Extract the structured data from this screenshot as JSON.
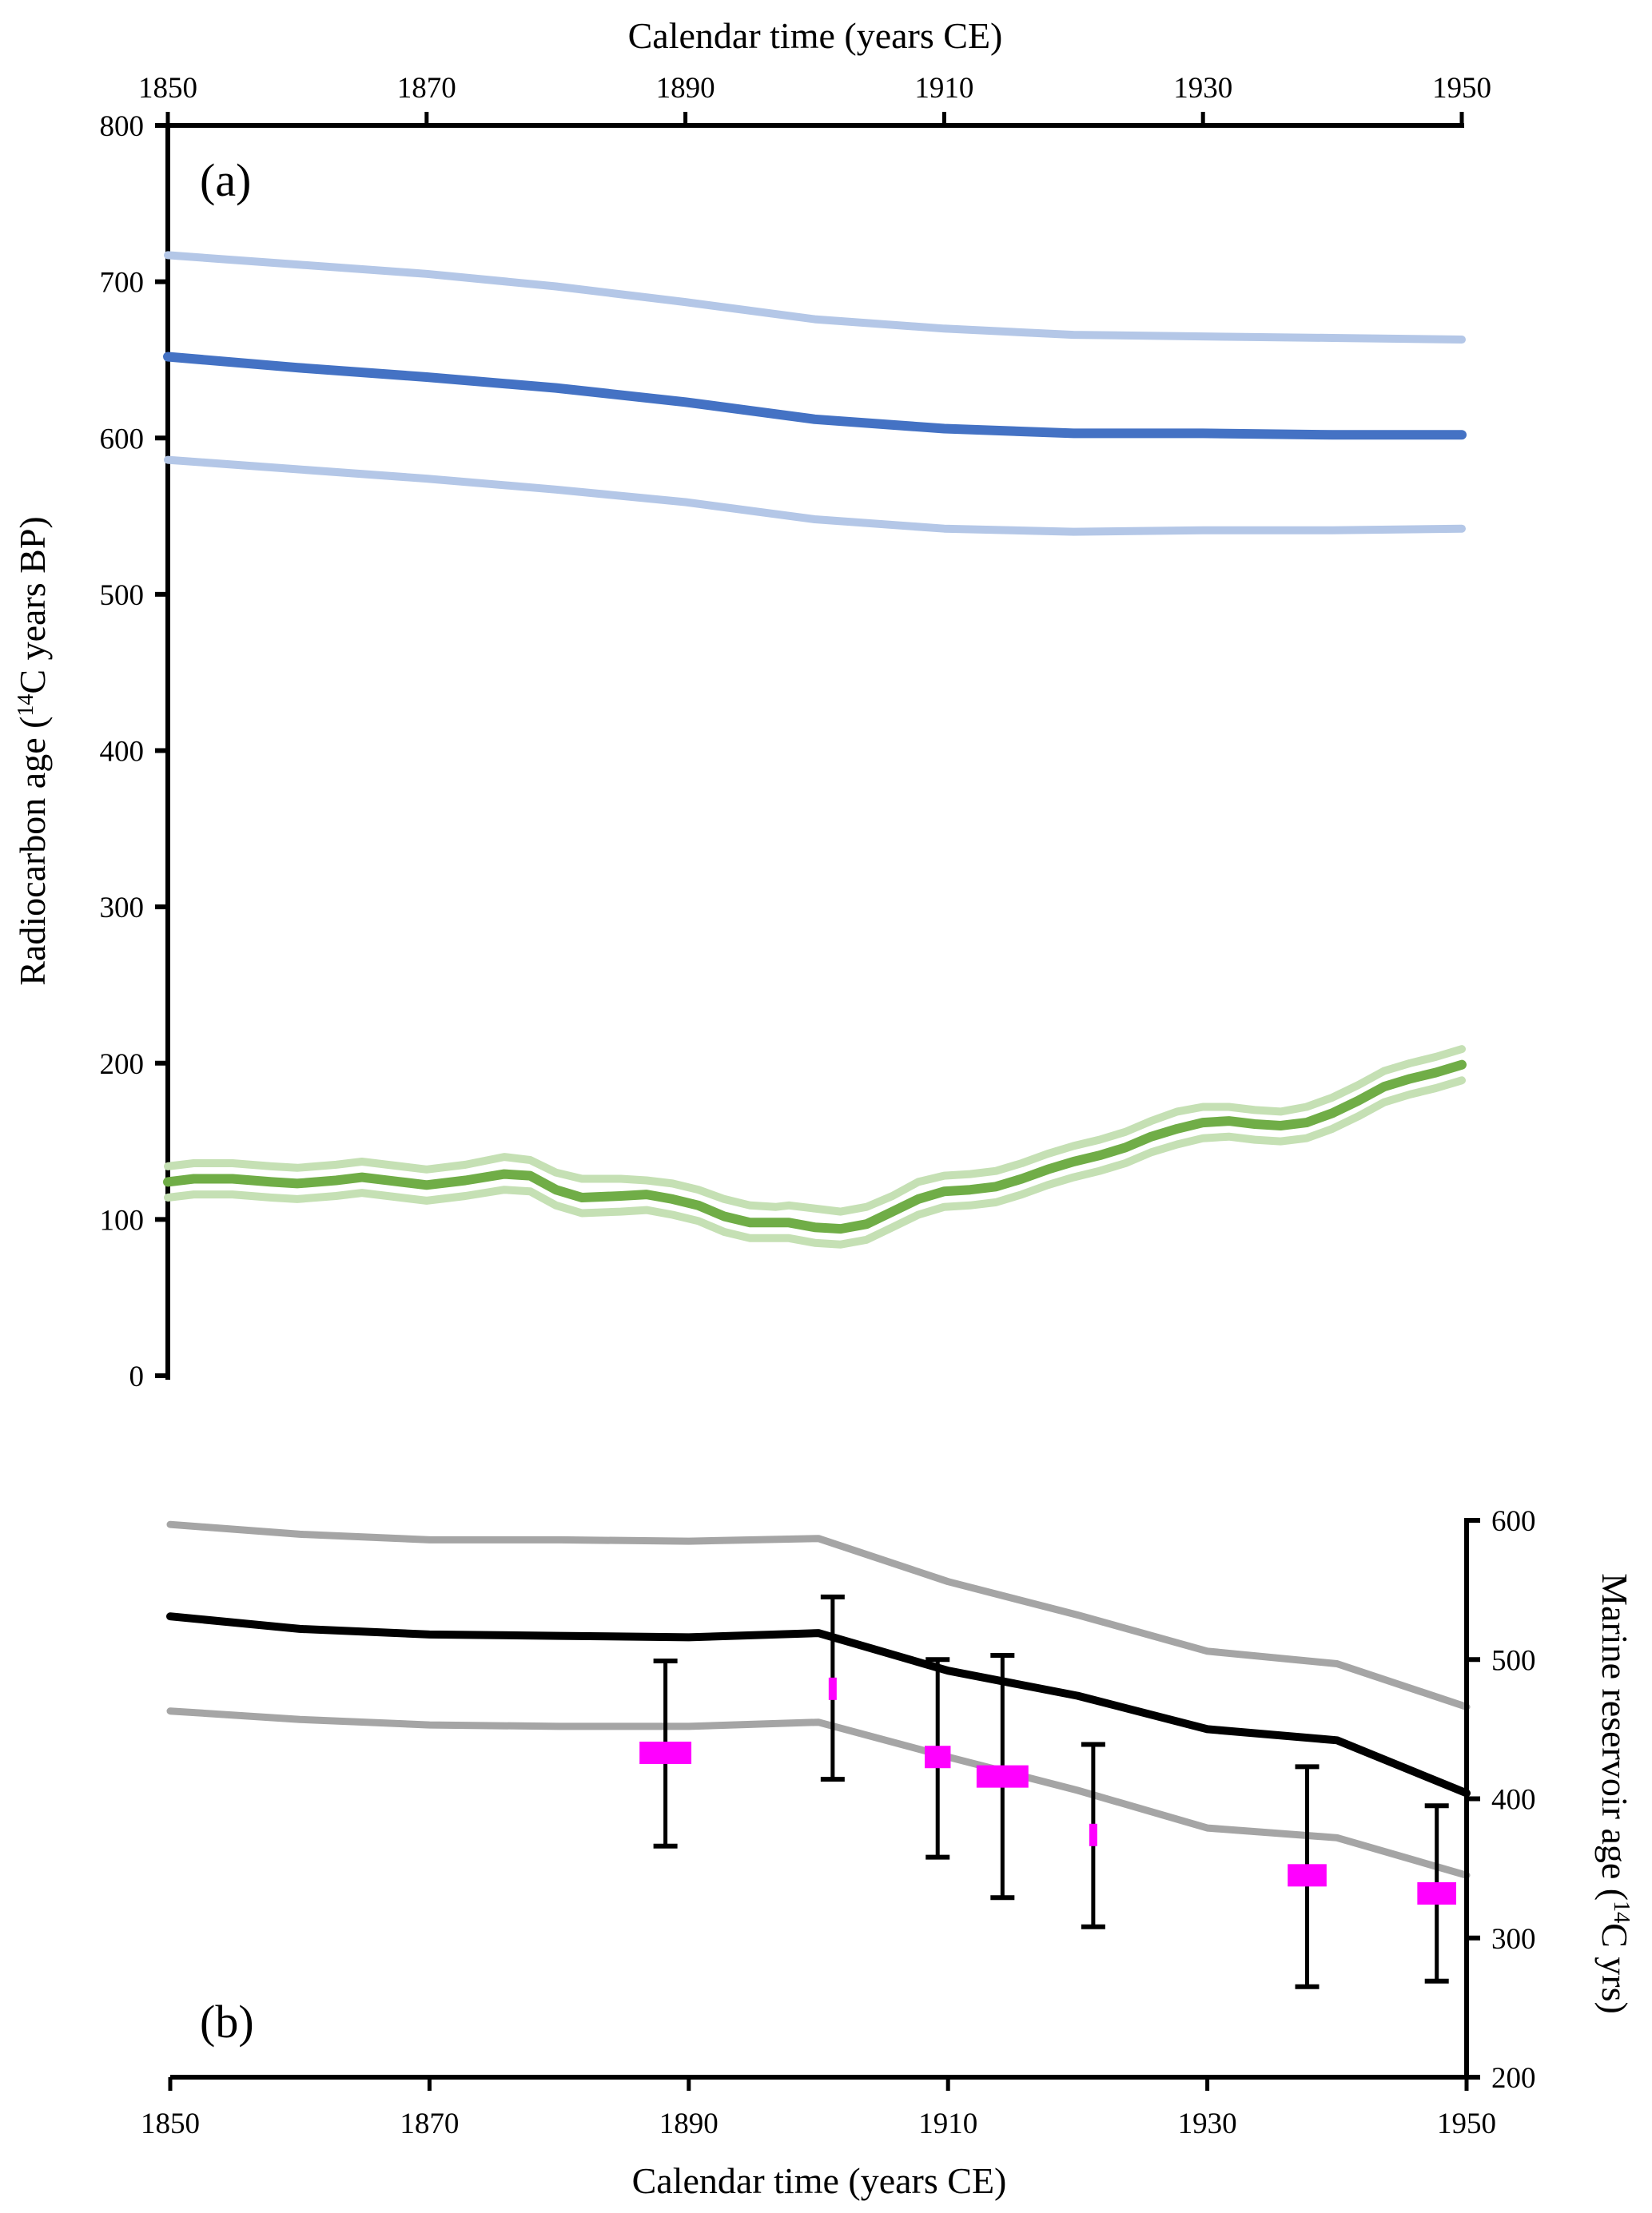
{
  "chart_data": [
    {
      "panel": "a",
      "type": "line",
      "panel_label": "(a)",
      "title": "",
      "xlabel": "Calendar time (years CE)",
      "ylabel": "Radiocarbon age (14C years BP)",
      "ylabel_parts": {
        "pre": "Radiocarbon age (",
        "sup": "14",
        "post": "C years BP)"
      },
      "xlim": [
        1850,
        1950
      ],
      "ylim": [
        0,
        800
      ],
      "x_ticks": [
        "1850",
        "1870",
        "1890",
        "1910",
        "1930",
        "1950"
      ],
      "y_ticks": [
        "0",
        "100",
        "200",
        "300",
        "400",
        "500",
        "600",
        "700",
        "800"
      ],
      "x_axis_position": "top",
      "grid": false,
      "series": [
        {
          "name": "marine-upper",
          "color": "#b4c7e7",
          "role": "band",
          "x": [
            1850,
            1860,
            1870,
            1880,
            1890,
            1900,
            1910,
            1920,
            1930,
            1940,
            1950
          ],
          "y": [
            717,
            711,
            705,
            697,
            687,
            676,
            670,
            666,
            665,
            664,
            663
          ]
        },
        {
          "name": "marine-mean",
          "color": "#4472c4",
          "role": "mean",
          "x": [
            1850,
            1860,
            1870,
            1880,
            1890,
            1900,
            1910,
            1920,
            1930,
            1940,
            1950
          ],
          "y": [
            652,
            645,
            639,
            632,
            623,
            612,
            606,
            603,
            603,
            602,
            602
          ]
        },
        {
          "name": "marine-lower",
          "color": "#b4c7e7",
          "role": "band",
          "x": [
            1850,
            1860,
            1870,
            1880,
            1890,
            1900,
            1910,
            1920,
            1930,
            1940,
            1950
          ],
          "y": [
            586,
            580,
            574,
            567,
            559,
            548,
            542,
            540,
            541,
            541,
            542
          ]
        },
        {
          "name": "atmospheric-upper",
          "color": "#c5e0b4",
          "role": "band",
          "x": [
            1850,
            1852,
            1855,
            1858,
            1860,
            1863,
            1865,
            1868,
            1870,
            1873,
            1876,
            1878,
            1880,
            1882,
            1885,
            1887,
            1889,
            1891,
            1893,
            1895,
            1897,
            1898,
            1900,
            1902,
            1904,
            1906,
            1908,
            1910,
            1912,
            1914,
            1916,
            1918,
            1920,
            1922,
            1924,
            1926,
            1928,
            1930,
            1932,
            1934,
            1936,
            1938,
            1940,
            1942,
            1944,
            1946,
            1948,
            1950
          ],
          "y": [
            134,
            136,
            136,
            134,
            133,
            135,
            137,
            134,
            132,
            135,
            140,
            138,
            130,
            126,
            126,
            125,
            123,
            119,
            113,
            109,
            108,
            109,
            107,
            105,
            108,
            115,
            124,
            128,
            129,
            131,
            136,
            142,
            147,
            151,
            156,
            163,
            169,
            172,
            172,
            170,
            169,
            172,
            178,
            186,
            195,
            200,
            204,
            209
          ]
        },
        {
          "name": "atmospheric-mean",
          "color": "#70ad47",
          "role": "mean",
          "x": [
            1850,
            1852,
            1855,
            1858,
            1860,
            1863,
            1865,
            1868,
            1870,
            1873,
            1876,
            1878,
            1880,
            1882,
            1885,
            1887,
            1889,
            1891,
            1893,
            1895,
            1897,
            1898,
            1900,
            1902,
            1904,
            1906,
            1908,
            1910,
            1912,
            1914,
            1916,
            1918,
            1920,
            1922,
            1924,
            1926,
            1928,
            1930,
            1932,
            1934,
            1936,
            1938,
            1940,
            1942,
            1944,
            1946,
            1948,
            1950
          ],
          "y": [
            124,
            126,
            126,
            124,
            123,
            125,
            127,
            124,
            122,
            125,
            129,
            128,
            119,
            114,
            115,
            116,
            113,
            109,
            102,
            98,
            98,
            98,
            95,
            94,
            97,
            105,
            113,
            118,
            119,
            121,
            126,
            132,
            137,
            141,
            146,
            153,
            158,
            162,
            163,
            161,
            160,
            162,
            168,
            176,
            185,
            190,
            194,
            199
          ]
        },
        {
          "name": "atmospheric-lower",
          "color": "#c5e0b4",
          "role": "band",
          "x": [
            1850,
            1852,
            1855,
            1858,
            1860,
            1863,
            1865,
            1868,
            1870,
            1873,
            1876,
            1878,
            1880,
            1882,
            1885,
            1887,
            1889,
            1891,
            1893,
            1895,
            1897,
            1898,
            1900,
            1902,
            1904,
            1906,
            1908,
            1910,
            1912,
            1914,
            1916,
            1918,
            1920,
            1922,
            1924,
            1926,
            1928,
            1930,
            1932,
            1934,
            1936,
            1938,
            1940,
            1942,
            1944,
            1946,
            1948,
            1950
          ],
          "y": [
            114,
            116,
            116,
            114,
            113,
            115,
            117,
            114,
            112,
            115,
            119,
            118,
            109,
            104,
            105,
            106,
            103,
            99,
            92,
            88,
            88,
            88,
            85,
            84,
            87,
            95,
            103,
            108,
            109,
            111,
            116,
            122,
            127,
            131,
            136,
            143,
            148,
            152,
            153,
            151,
            150,
            152,
            158,
            166,
            175,
            180,
            184,
            189
          ]
        }
      ]
    },
    {
      "panel": "b",
      "type": "line",
      "panel_label": "(b)",
      "title": "",
      "xlabel": "Calendar time (years CE)",
      "ylabel": "Marine reservoir age (14C yrs)",
      "ylabel_parts": {
        "pre": "Marine reservoir age (",
        "sup": "14",
        "post": "C yrs)"
      },
      "xlim": [
        1850,
        1950
      ],
      "ylim": [
        200,
        600
      ],
      "x_ticks": [
        "1850",
        "1870",
        "1890",
        "1910",
        "1930",
        "1950"
      ],
      "y_ticks": [
        "200",
        "300",
        "400",
        "500",
        "600"
      ],
      "y_axis_position": "right",
      "grid": false,
      "series": [
        {
          "name": "reservoir-upper",
          "color": "#a5a5a5",
          "role": "band",
          "x": [
            1850,
            1860,
            1870,
            1880,
            1890,
            1900,
            1910,
            1920,
            1930,
            1940,
            1950
          ],
          "y": [
            597,
            590,
            586,
            586,
            585,
            587,
            556,
            532,
            506,
            497,
            466
          ]
        },
        {
          "name": "reservoir-mean",
          "color": "#000000",
          "role": "mean",
          "x": [
            1850,
            1860,
            1870,
            1880,
            1890,
            1900,
            1910,
            1920,
            1930,
            1940,
            1950
          ],
          "y": [
            531,
            522,
            518,
            517,
            516,
            519,
            492,
            474,
            450,
            442,
            404
          ]
        },
        {
          "name": "reservoir-lower",
          "color": "#a5a5a5",
          "role": "band",
          "x": [
            1850,
            1860,
            1870,
            1880,
            1890,
            1900,
            1910,
            1920,
            1930,
            1940,
            1950
          ],
          "y": [
            463,
            457,
            453,
            452,
            452,
            455,
            430,
            406,
            379,
            372,
            345
          ]
        }
      ],
      "points": {
        "name": "measured-reservoir-ages",
        "color": "#ff00ff",
        "x": [
          1888.2,
          1901.1,
          1909.2,
          1914.2,
          1921.2,
          1937.7,
          1947.7
        ],
        "y": [
          433,
          479,
          430,
          416,
          374,
          345,
          332
        ],
        "err_low": [
          366,
          414,
          358,
          329,
          308,
          265,
          269
        ],
        "err_high": [
          499,
          545,
          500,
          503,
          439,
          423,
          395
        ],
        "x_uncertainty_years": [
          2.0,
          0.3,
          1.0,
          2.0,
          0.3,
          1.5,
          1.5
        ]
      }
    }
  ]
}
